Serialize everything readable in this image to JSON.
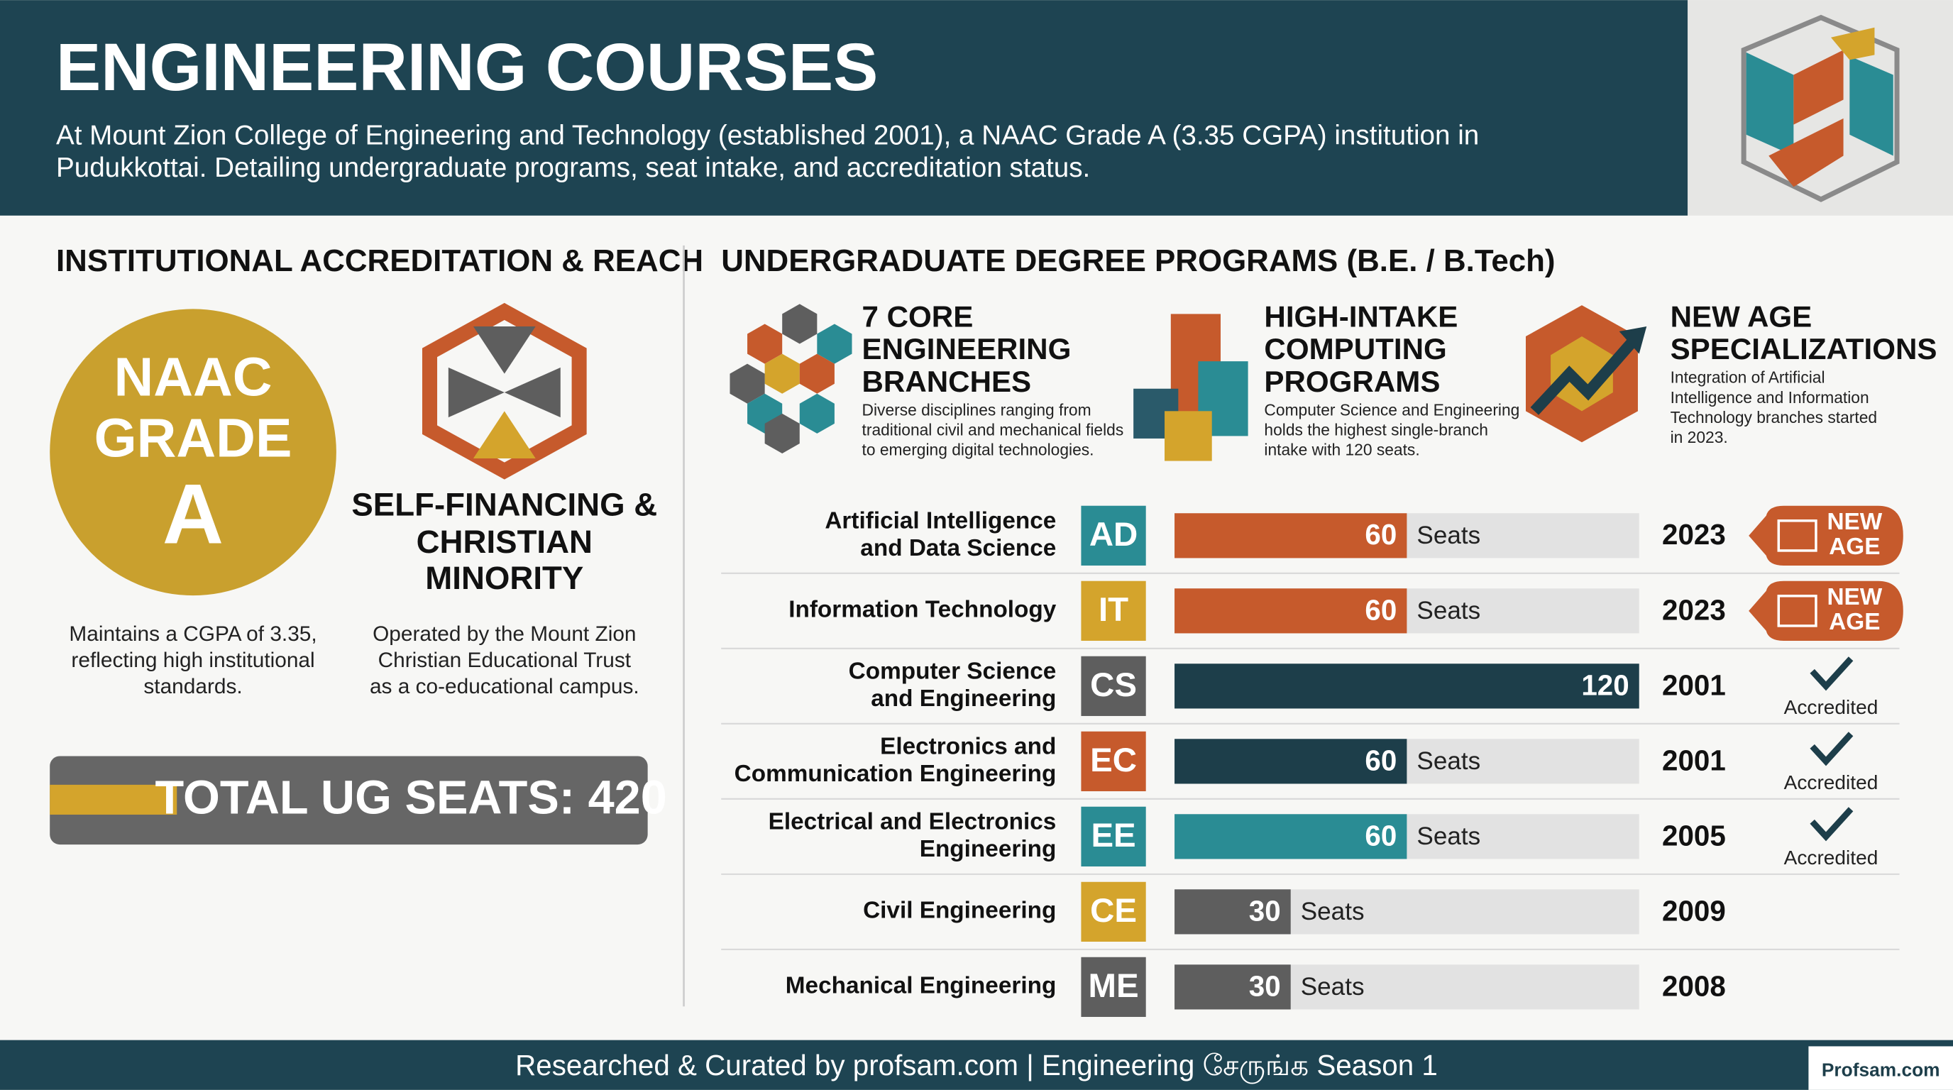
{
  "header": {
    "title": "ENGINEERING COURSES",
    "subtitle": [
      "At Mount Zion College of Engineering and Technology (established 2001), a NAAC Grade A (3.35 CGPA) institution in",
      "Pudukkottai. Detailing undergraduate programs, seat intake, and accreditation status."
    ]
  },
  "left": {
    "heading": "INSTITUTIONAL ACCREDITATION & REACH",
    "badge": [
      "NAAC",
      "GRADE",
      "A"
    ],
    "badge_desc": [
      "Maintains a CGPA of 3.35,",
      "reflecting high institutional",
      "standards."
    ],
    "minority_title": [
      "SELF-FINANCING &",
      "CHRISTIAN",
      "MINORITY"
    ],
    "minority_desc": [
      "Operated by the Mount Zion",
      "Christian Educational Trust",
      "as a co-educational campus."
    ],
    "total": "TOTAL UG SEATS: 420"
  },
  "right": {
    "heading": "UNDERGRADUATE DEGREE PROGRAMS (B.E. / B.Tech)",
    "features": [
      {
        "title": [
          "7 CORE",
          "ENGINEERING",
          "BRANCHES"
        ],
        "desc": [
          "Diverse disciplines ranging from",
          "traditional civil and mechanical fields",
          "to emerging digital technologies."
        ]
      },
      {
        "title": [
          "HIGH-INTAKE",
          "COMPUTING",
          "PROGRAMS"
        ],
        "desc": [
          "Computer Science and Engineering",
          "holds the highest single-branch",
          "intake with 120 seats."
        ]
      },
      {
        "title": [
          "NEW AGE",
          "SPECIALIZATIONS"
        ],
        "desc": [
          "Integration of Artificial",
          "Intelligence and Information",
          "Technology branches started",
          "in 2023."
        ]
      }
    ]
  },
  "programs": {
    "rows": [
      {
        "name": [
          "Artificial Intelligence",
          "and Data Science"
        ],
        "code": "AD",
        "code_color": "#2a8c94",
        "seats": 60,
        "seats_label": "Seats",
        "bar_color": "#c65a2c",
        "year": "2023",
        "badge": [
          "NEW",
          "AGE"
        ]
      },
      {
        "name": [
          "Information Technology"
        ],
        "code": "IT",
        "code_color": "#d4a42c",
        "seats": 60,
        "seats_label": "Seats",
        "bar_color": "#c65a2c",
        "year": "2023",
        "badge": [
          "NEW",
          "AGE"
        ]
      },
      {
        "name": [
          "Computer Science",
          "and Engineering"
        ],
        "code": "CS",
        "code_color": "#5e5e5e",
        "seats": 120,
        "bar_color": "#1d3e4a",
        "year": "2001",
        "accredited": "Accredited"
      },
      {
        "name": [
          "Electronics and",
          "Communication Engineering"
        ],
        "code": "EC",
        "code_color": "#c65a2c",
        "seats": 60,
        "seats_label": "Seats",
        "bar_color": "#1d3e4a",
        "year": "2001",
        "accredited": "Accredited"
      },
      {
        "name": [
          "Electrical and Electronics",
          "Engineering"
        ],
        "code": "EE",
        "code_color": "#2a8c94",
        "seats": 60,
        "seats_label": "Seats",
        "bar_color": "#2a8c94",
        "year": "2005",
        "accredited": "Accredited"
      },
      {
        "name": [
          "Civil Engineering"
        ],
        "code": "CE",
        "code_color": "#d4a42c",
        "seats": 30,
        "seats_label": "Seats",
        "bar_color": "#5e5e5e",
        "year": "2009"
      },
      {
        "name": [
          "Mechanical Engineering"
        ],
        "code": "ME",
        "code_color": "#5e5e5e",
        "seats": 30,
        "seats_label": "Seats",
        "bar_color": "#5e5e5e",
        "year": "2008"
      }
    ]
  },
  "footer": {
    "credit": "Researched & Curated by profsam.com | Engineering சேருங்க Season 1",
    "brand": "Profsam.com"
  }
}
